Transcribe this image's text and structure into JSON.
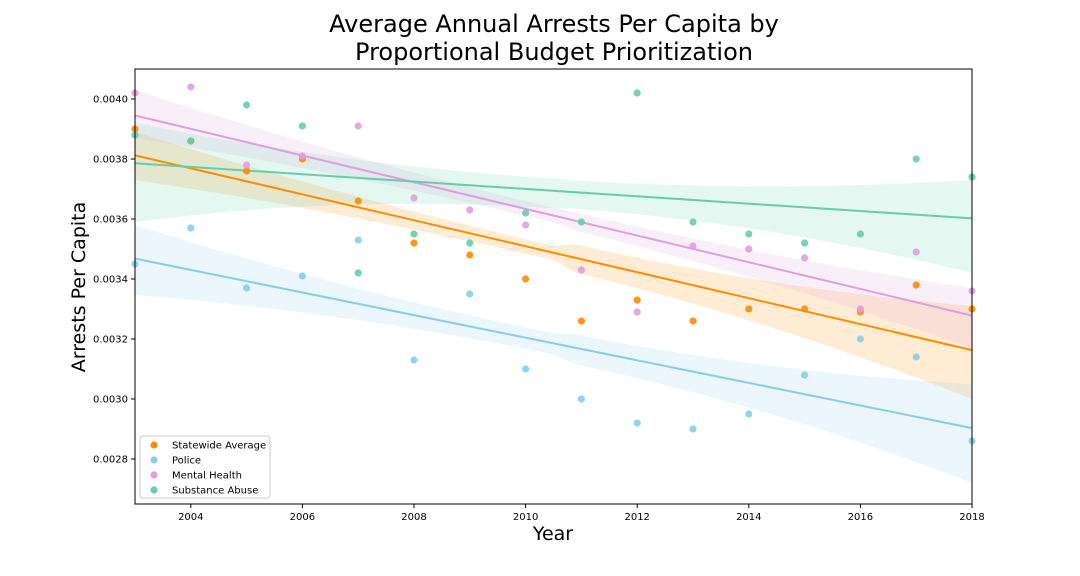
{
  "chart_data": {
    "type": "scatter",
    "title": "Average Annual Arrests Per Capita by\nProportional Budget Prioritization",
    "xlabel": "Year",
    "ylabel": "Arrests Per Capita",
    "xlim": [
      2003,
      2018
    ],
    "ylim": [
      0.00265,
      0.0041
    ],
    "x_ticks": [
      2004,
      2006,
      2008,
      2010,
      2012,
      2014,
      2016,
      2018
    ],
    "y_ticks": [
      0.0028,
      0.003,
      0.0032,
      0.0034,
      0.0036,
      0.0038,
      0.004
    ],
    "x_tick_labels": [
      "2004",
      "2006",
      "2008",
      "2010",
      "2012",
      "2014",
      "2016",
      "2018"
    ],
    "y_tick_labels": [
      "0.0028",
      "0.0030",
      "0.0032",
      "0.0034",
      "0.0036",
      "0.0038",
      "0.0040"
    ],
    "grid": false,
    "legend_position": "lower-left",
    "series": [
      {
        "name": "Statewide Average",
        "color": "#ff8c00",
        "points": [
          [
            2003,
            0.0039
          ],
          [
            2004,
            0.00386
          ],
          [
            2005,
            0.00376
          ],
          [
            2006,
            0.0038
          ],
          [
            2007,
            0.00366
          ],
          [
            2008,
            0.00352
          ],
          [
            2009,
            0.00348
          ],
          [
            2010,
            0.0034
          ],
          [
            2011,
            0.00326
          ],
          [
            2012,
            0.00333
          ],
          [
            2013,
            0.00326
          ],
          [
            2014,
            0.0033
          ],
          [
            2015,
            0.0033
          ],
          [
            2016,
            0.00329
          ],
          [
            2017,
            0.00338
          ],
          [
            2018,
            0.0033
          ]
        ],
        "fit": [
          0.003812,
          0.003163
        ],
        "ci_start": [
          0.00373,
          0.00389
        ],
        "ci_end": [
          0.003,
          0.00331
        ]
      },
      {
        "name": "Police",
        "color": "#87ceeb",
        "points": [
          [
            2003,
            0.00345
          ],
          [
            2004,
            0.00357
          ],
          [
            2005,
            0.00337
          ],
          [
            2006,
            0.00341
          ],
          [
            2007,
            0.00353
          ],
          [
            2008,
            0.00313
          ],
          [
            2009,
            0.00335
          ],
          [
            2010,
            0.0031
          ],
          [
            2011,
            0.003
          ],
          [
            2012,
            0.00292
          ],
          [
            2013,
            0.0029
          ],
          [
            2014,
            0.00295
          ],
          [
            2015,
            0.00308
          ],
          [
            2016,
            0.0032
          ],
          [
            2017,
            0.00314
          ],
          [
            2018,
            0.00286
          ]
        ],
        "fit": [
          0.003468,
          0.002903
        ],
        "ci_start": [
          0.003347,
          0.00358
        ],
        "ci_end": [
          0.00272,
          0.00305
        ]
      },
      {
        "name": "Mental Health",
        "color": "#dda0dd",
        "points": [
          [
            2003,
            0.00402
          ],
          [
            2004,
            0.00404
          ],
          [
            2005,
            0.00378
          ],
          [
            2006,
            0.00381
          ],
          [
            2007,
            0.00391
          ],
          [
            2008,
            0.00367
          ],
          [
            2009,
            0.00363
          ],
          [
            2010,
            0.00358
          ],
          [
            2011,
            0.00343
          ],
          [
            2012,
            0.00329
          ],
          [
            2013,
            0.00351
          ],
          [
            2014,
            0.0035
          ],
          [
            2015,
            0.00347
          ],
          [
            2016,
            0.0033
          ],
          [
            2017,
            0.00349
          ],
          [
            2018,
            0.00336
          ]
        ],
        "fit": [
          0.003945,
          0.003278
        ],
        "ci_start": [
          0.00387,
          0.00403
        ],
        "ci_end": [
          0.00317,
          0.00337
        ]
      },
      {
        "name": "Substance Abuse",
        "color": "#66cdaa",
        "points": [
          [
            2003,
            0.00388
          ],
          [
            2004,
            0.00386
          ],
          [
            2005,
            0.00398
          ],
          [
            2006,
            0.00391
          ],
          [
            2007,
            0.00342
          ],
          [
            2008,
            0.00355
          ],
          [
            2009,
            0.00352
          ],
          [
            2010,
            0.00362
          ],
          [
            2011,
            0.00359
          ],
          [
            2012,
            0.00402
          ],
          [
            2013,
            0.00359
          ],
          [
            2014,
            0.00355
          ],
          [
            2015,
            0.00352
          ],
          [
            2016,
            0.00355
          ],
          [
            2017,
            0.0038
          ],
          [
            2018,
            0.00374
          ]
        ],
        "fit": [
          0.003786,
          0.003602
        ],
        "ci_start": [
          0.00359,
          0.00392
        ],
        "ci_end": [
          0.00342,
          0.00373
        ]
      }
    ]
  }
}
